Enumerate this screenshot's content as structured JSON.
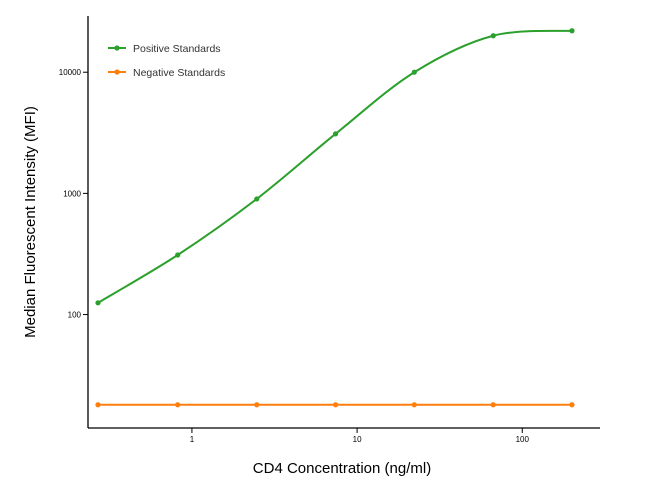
{
  "chart_data": {
    "type": "line",
    "title": "",
    "xlabel": "CD4 Concentration (ng/ml)",
    "ylabel": "Median  Fluorescent Intensity  (MFI)",
    "xscale": "log",
    "yscale": "log",
    "xlim": [
      0.27,
      250
    ],
    "ylim": [
      14,
      25000
    ],
    "xticks": [
      1,
      10,
      100
    ],
    "xtick_labels": [
      "1",
      "10",
      "100"
    ],
    "yticks": [
      100,
      1000,
      10000
    ],
    "ytick_labels": [
      "100",
      "1000",
      "10000"
    ],
    "grid": false,
    "legend_position": "top-left",
    "series": [
      {
        "name": "Positive Standards",
        "color": "#2ca02c",
        "marker": "circle",
        "x": [
          0.27,
          0.82,
          2.47,
          7.41,
          22.2,
          66.7,
          200
        ],
        "y": [
          125,
          310,
          900,
          3100,
          10000,
          20000,
          22000
        ]
      },
      {
        "name": "Negative Standards",
        "color": "#ff7f0e",
        "marker": "circle",
        "x": [
          0.27,
          0.82,
          2.47,
          7.41,
          22.2,
          66.7,
          200
        ],
        "y": [
          18,
          18,
          18,
          18,
          18,
          18,
          18
        ]
      }
    ]
  }
}
